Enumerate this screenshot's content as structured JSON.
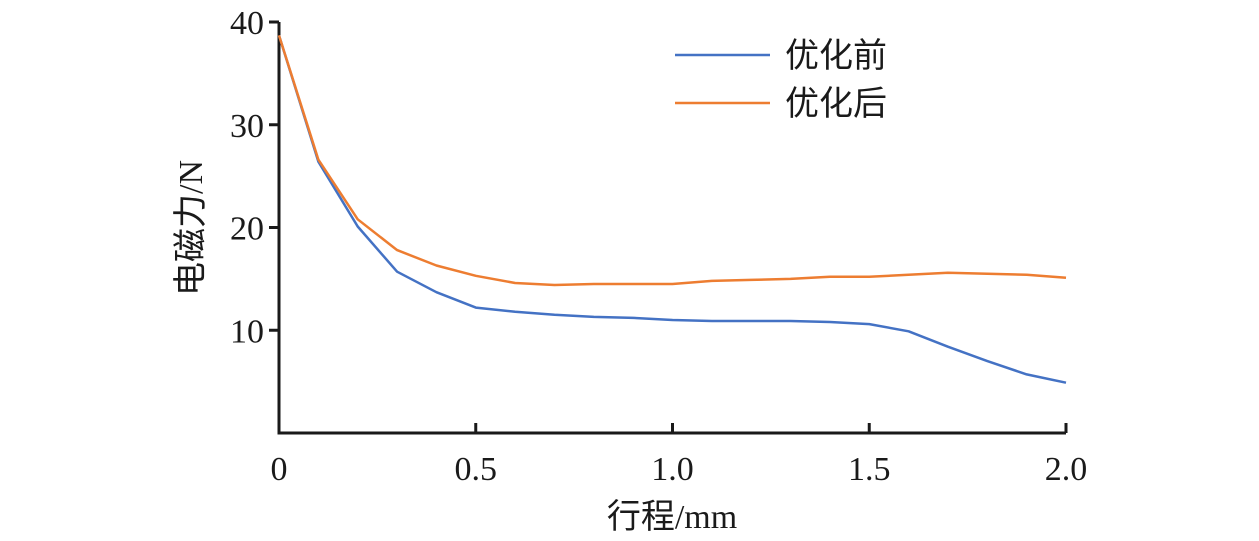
{
  "chart_data": {
    "type": "line",
    "title": "",
    "xlabel": "行程/mm",
    "ylabel": "电磁力/N",
    "xlim": [
      0,
      2.0
    ],
    "ylim": [
      0,
      40
    ],
    "xticks": [
      "0",
      "0.5",
      "1.0",
      "1.5",
      "2.0"
    ],
    "xtick_values": [
      0,
      0.5,
      1.0,
      1.5,
      2.0
    ],
    "yticks": [
      "10",
      "20",
      "30",
      "40"
    ],
    "ytick_values": [
      10,
      20,
      30,
      40
    ],
    "grid": false,
    "legend_position": "top-right",
    "x": [
      0,
      0.1,
      0.2,
      0.3,
      0.4,
      0.5,
      0.6,
      0.7,
      0.8,
      0.9,
      1.0,
      1.1,
      1.2,
      1.3,
      1.4,
      1.5,
      1.6,
      1.7,
      1.8,
      1.9,
      2.0
    ],
    "series": [
      {
        "name": "优化前",
        "color": "#4472c4",
        "values": [
          38.7,
          26.4,
          20.1,
          15.7,
          13.7,
          12.2,
          11.8,
          11.5,
          11.3,
          11.2,
          11.0,
          10.9,
          10.9,
          10.9,
          10.8,
          10.6,
          9.9,
          8.4,
          7.0,
          5.7,
          4.9
        ]
      },
      {
        "name": "优化后",
        "color": "#ed7d31",
        "values": [
          38.7,
          26.6,
          20.8,
          17.8,
          16.3,
          15.3,
          14.6,
          14.4,
          14.5,
          14.5,
          14.5,
          14.8,
          14.9,
          15.0,
          15.2,
          15.2,
          15.4,
          15.6,
          15.5,
          15.4,
          15.1
        ]
      }
    ]
  }
}
